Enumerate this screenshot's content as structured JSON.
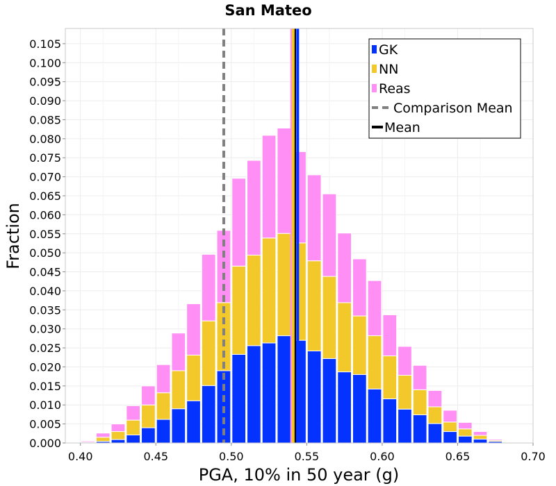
{
  "chart_data": {
    "type": "bar",
    "title": "San Mateo",
    "xlabel": "PGA, 10% in 50 year (g)",
    "ylabel": "Fraction",
    "xlim": [
      0.39,
      0.7
    ],
    "ylim": [
      0.0,
      0.109
    ],
    "stacked": true,
    "grid": true,
    "legend_position": "top-right",
    "bin_width": 0.01,
    "x": [
      0.395,
      0.405,
      0.415,
      0.425,
      0.435,
      0.445,
      0.455,
      0.465,
      0.475,
      0.485,
      0.495,
      0.505,
      0.515,
      0.525,
      0.535,
      0.545,
      0.555,
      0.565,
      0.575,
      0.585,
      0.595,
      0.605,
      0.615,
      0.625,
      0.635,
      0.645,
      0.655,
      0.665,
      0.675,
      0.685,
      0.695
    ],
    "series": [
      {
        "name": "GK",
        "color": "#0433ff",
        "values": [
          0.0,
          0.0,
          0.0004,
          0.0009,
          0.0021,
          0.004,
          0.0062,
          0.009,
          0.0111,
          0.0151,
          0.019,
          0.0233,
          0.0256,
          0.0263,
          0.0282,
          0.027,
          0.0242,
          0.0222,
          0.0187,
          0.018,
          0.0142,
          0.0116,
          0.0089,
          0.0074,
          0.0051,
          0.003,
          0.0018,
          0.001,
          0.0004,
          0.0001,
          0.0
        ]
      },
      {
        "name": "NN",
        "color": "#f2c82a",
        "values": [
          0.0001,
          0.0002,
          0.0011,
          0.0021,
          0.0039,
          0.006,
          0.007,
          0.01,
          0.012,
          0.017,
          0.0179,
          0.0232,
          0.0238,
          0.0276,
          0.0269,
          0.0256,
          0.0237,
          0.0216,
          0.0182,
          0.0154,
          0.014,
          0.0113,
          0.0089,
          0.0066,
          0.0044,
          0.0025,
          0.0019,
          0.001,
          0.0003,
          0.0001,
          0.0
        ]
      },
      {
        "name": "Reas",
        "color": "#ff8ff5",
        "values": [
          0.0001,
          0.0003,
          0.0011,
          0.002,
          0.0038,
          0.005,
          0.0074,
          0.0099,
          0.0135,
          0.0175,
          0.019,
          0.0231,
          0.0249,
          0.027,
          0.0277,
          0.024,
          0.0226,
          0.0217,
          0.0183,
          0.015,
          0.0145,
          0.0108,
          0.0076,
          0.0064,
          0.0043,
          0.0031,
          0.0017,
          0.001,
          0.0003,
          0.0001,
          0.0001
        ]
      }
    ],
    "lines": [
      {
        "name": "Comparison Mean",
        "x": 0.495,
        "style": "dashed",
        "color": "#808080"
      },
      {
        "name": "Mean",
        "x": 0.542,
        "style": "solid",
        "color": "#000000"
      },
      {
        "name": "",
        "x": 0.544,
        "style": "solid",
        "color": "#0433ff"
      },
      {
        "name": "",
        "x": 0.54,
        "style": "solid",
        "color": "#ff8ff5"
      },
      {
        "name": "",
        "x": 0.541,
        "style": "solid",
        "color": "#f2c82a"
      }
    ],
    "x_ticks": [
      "0.40",
      "0.45",
      "0.50",
      "0.55",
      "0.60",
      "0.65",
      "0.70"
    ],
    "x_tick_values": [
      0.4,
      0.45,
      0.5,
      0.55,
      0.6,
      0.65,
      0.7
    ],
    "y_ticks": [
      "0.000",
      "0.005",
      "0.010",
      "0.015",
      "0.020",
      "0.025",
      "0.030",
      "0.035",
      "0.040",
      "0.045",
      "0.050",
      "0.055",
      "0.060",
      "0.065",
      "0.070",
      "0.075",
      "0.080",
      "0.085",
      "0.090",
      "0.095",
      "0.100",
      "0.105"
    ],
    "y_tick_values": [
      0.0,
      0.005,
      0.01,
      0.015,
      0.02,
      0.025,
      0.03,
      0.035,
      0.04,
      0.045,
      0.05,
      0.055,
      0.06,
      0.065,
      0.07,
      0.075,
      0.08,
      0.085,
      0.09,
      0.095,
      0.1,
      0.105
    ],
    "legend": [
      {
        "label": "GK",
        "kind": "patch",
        "color": "#0433ff"
      },
      {
        "label": "NN",
        "kind": "patch",
        "color": "#f2c82a"
      },
      {
        "label": "Reas",
        "kind": "patch",
        "color": "#ff8ff5"
      },
      {
        "label": "Comparison Mean",
        "kind": "dashed",
        "color": "#808080"
      },
      {
        "label": "Mean",
        "kind": "solid",
        "color": "#000000"
      }
    ]
  }
}
